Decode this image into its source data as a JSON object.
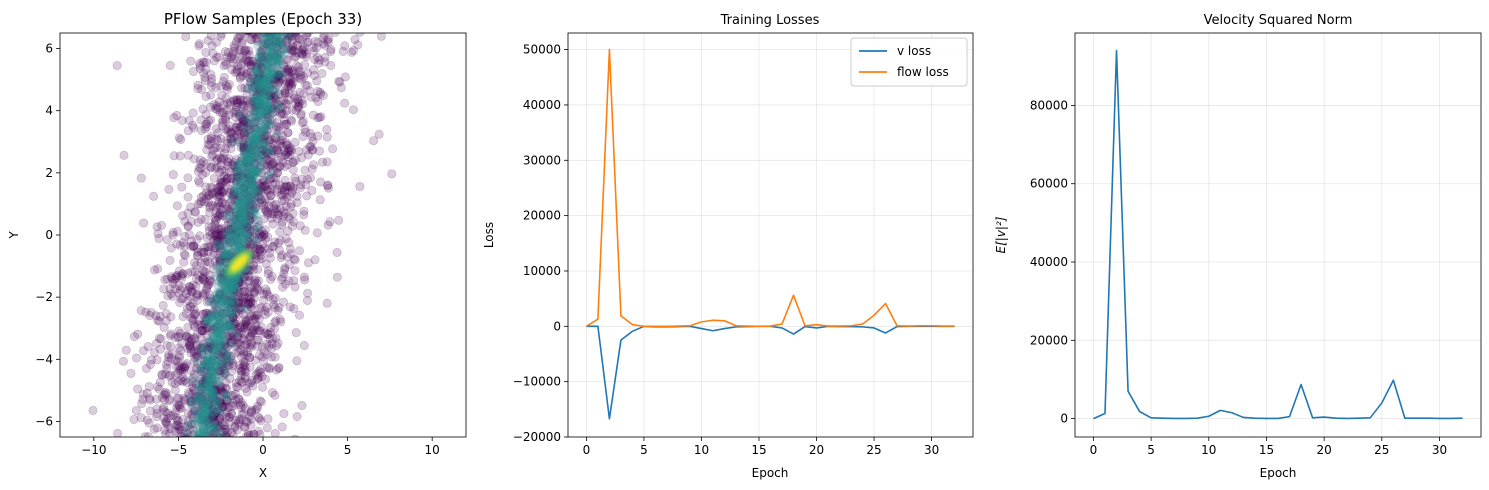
{
  "chart_data": [
    {
      "type": "scatter",
      "title": "PFlow Samples (Epoch 33)",
      "xlabel": "X",
      "ylabel": "Y",
      "xlim": [
        -12,
        12
      ],
      "ylim": [
        -6.5,
        6.5
      ],
      "xticks": [
        -10,
        -5,
        0,
        5,
        10
      ],
      "yticks": [
        -6,
        -4,
        -2,
        0,
        2,
        4,
        6
      ],
      "grid": false,
      "colors": {
        "points": "#440154",
        "density_mid": "#21918c",
        "density_high": "#fde725"
      },
      "distribution": {
        "trend": "y ≈ 2.9·(x+1.8) - 0.9",
        "core_center": [
          -1.4,
          -0.9
        ],
        "scatter_x_range": [
          -8,
          7
        ]
      }
    },
    {
      "type": "line",
      "title": "Training Losses",
      "xlabel": "Epoch",
      "ylabel": "Loss",
      "xlim": [
        -1.6,
        33.6
      ],
      "ylim": [
        -20000,
        53000
      ],
      "xticks": [
        0,
        5,
        10,
        15,
        20,
        25,
        30
      ],
      "yticks": [
        -20000,
        -10000,
        0,
        10000,
        20000,
        30000,
        40000,
        50000
      ],
      "grid": true,
      "legend": "top-right",
      "x": [
        0,
        1,
        2,
        3,
        4,
        5,
        6,
        7,
        8,
        9,
        10,
        11,
        12,
        13,
        14,
        15,
        16,
        17,
        18,
        19,
        20,
        21,
        22,
        23,
        24,
        25,
        26,
        27,
        28,
        29,
        30,
        31,
        32
      ],
      "series": [
        {
          "name": "v loss",
          "color": "#1f77b4",
          "values": [
            0,
            0,
            -16700,
            -2500,
            -900,
            0,
            -100,
            -100,
            -50,
            0,
            -400,
            -800,
            -400,
            -100,
            -50,
            0,
            0,
            -300,
            -1400,
            -50,
            -300,
            0,
            -50,
            -50,
            -100,
            -300,
            -1200,
            -50,
            0,
            0,
            0,
            0,
            0
          ]
        },
        {
          "name": "flow loss",
          "color": "#ff7f0e",
          "values": [
            0,
            1300,
            50000,
            1900,
            300,
            0,
            0,
            0,
            50,
            100,
            800,
            1100,
            1000,
            100,
            50,
            0,
            50,
            400,
            5600,
            100,
            300,
            50,
            50,
            100,
            400,
            2000,
            4100,
            100,
            50,
            100,
            100,
            50,
            50
          ]
        }
      ]
    },
    {
      "type": "line",
      "title": "Velocity Squared Norm",
      "xlabel": "Epoch",
      "ylabel": "E[|v|²]",
      "xlim": [
        -1.6,
        33.6
      ],
      "ylim": [
        -4700,
        98500
      ],
      "xticks": [
        0,
        5,
        10,
        15,
        20,
        25,
        30
      ],
      "yticks": [
        0,
        20000,
        40000,
        60000,
        80000
      ],
      "grid": true,
      "x": [
        0,
        1,
        2,
        3,
        4,
        5,
        6,
        7,
        8,
        9,
        10,
        11,
        12,
        13,
        14,
        15,
        16,
        17,
        18,
        19,
        20,
        21,
        22,
        23,
        24,
        25,
        26,
        27,
        28,
        29,
        30,
        31,
        32
      ],
      "series": [
        {
          "color": "#1f77b4",
          "values": [
            0,
            1300,
            94000,
            7000,
            1800,
            200,
            100,
            50,
            50,
            100,
            600,
            2100,
            1500,
            300,
            100,
            50,
            50,
            500,
            8700,
            200,
            400,
            100,
            50,
            100,
            200,
            4000,
            9800,
            100,
            100,
            100,
            50,
            50,
            100
          ]
        }
      ]
    }
  ]
}
